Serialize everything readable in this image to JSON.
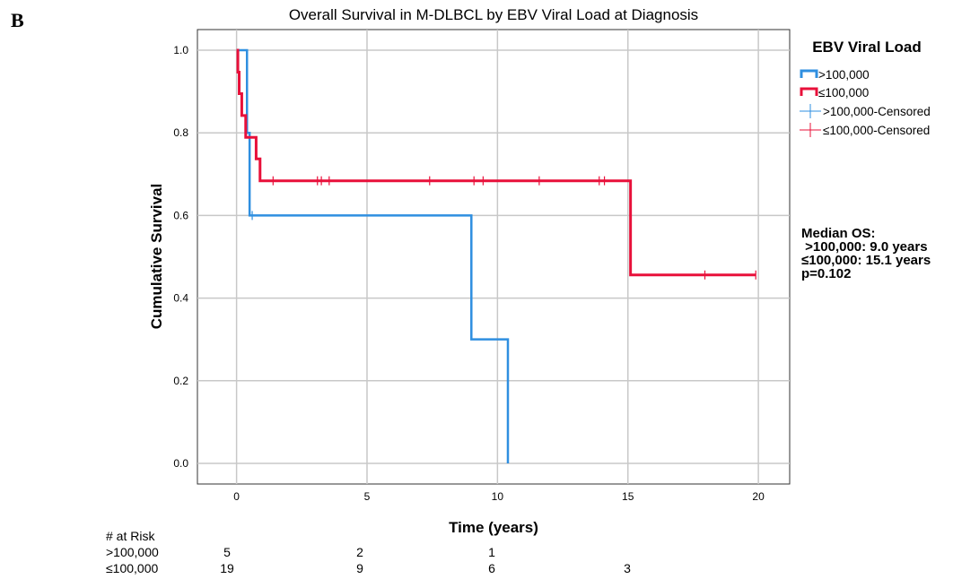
{
  "panel_label": "B",
  "chart_data": {
    "type": "line",
    "subtype": "kaplan-meier",
    "title": "Overall Survival in M-DLBCL by EBV Viral Load at Diagnosis",
    "xlabel": "Time (years)",
    "ylabel": "Cumulative Survival",
    "xlim": [
      -1.5,
      21.2
    ],
    "ylim": [
      -0.05,
      1.05
    ],
    "x_ticks": [
      "0",
      "5",
      "10",
      "15",
      "20"
    ],
    "y_ticks": [
      "0.0",
      "0.2",
      "0.4",
      "0.6",
      "0.8",
      "1.0"
    ],
    "grid": true,
    "legend_position": "right",
    "legend_title": "EBV Viral Load",
    "legend_entries": [
      ">100,000",
      "≤100,000",
      ">100,000-Censored",
      "≤100,000-Censored"
    ],
    "series": [
      {
        "name": ">100,000",
        "color": "#2f8fe0",
        "steps": [
          [
            0,
            1.0
          ],
          [
            0.4,
            0.8
          ],
          [
            0.5,
            0.6
          ],
          [
            9.0,
            0.3
          ],
          [
            10.4,
            0.0
          ]
        ],
        "end_x": 10.4,
        "censored": [
          [
            0.6,
            0.6
          ]
        ]
      },
      {
        "name": "≤100,000",
        "color": "#e8103a",
        "steps": [
          [
            0,
            1.0
          ],
          [
            0.05,
            0.947
          ],
          [
            0.1,
            0.895
          ],
          [
            0.2,
            0.842
          ],
          [
            0.35,
            0.789
          ],
          [
            0.75,
            0.737
          ],
          [
            0.9,
            0.684
          ],
          [
            15.1,
            0.456
          ]
        ],
        "end_x": 19.9,
        "censored": [
          [
            1.4,
            0.684
          ],
          [
            3.1,
            0.684
          ],
          [
            3.25,
            0.684
          ],
          [
            3.55,
            0.684
          ],
          [
            7.4,
            0.684
          ],
          [
            9.1,
            0.684
          ],
          [
            9.45,
            0.684
          ],
          [
            11.6,
            0.684
          ],
          [
            13.9,
            0.684
          ],
          [
            14.1,
            0.684
          ],
          [
            17.95,
            0.456
          ],
          [
            19.9,
            0.456
          ]
        ]
      }
    ],
    "annotation": {
      "lines": [
        "Median OS:",
        " >100,000: 9.0 years",
        "≤100,000: 15.1 years",
        "p=0.102"
      ]
    },
    "risk_table": {
      "header": "# at Risk",
      "rows": [
        {
          "label": ">100,000",
          "counts": [
            "5",
            "2",
            "1",
            "",
            ""
          ]
        },
        {
          "label": "≤100,000",
          "counts": [
            "19",
            "9",
            "6",
            "3",
            ""
          ]
        }
      ]
    }
  }
}
